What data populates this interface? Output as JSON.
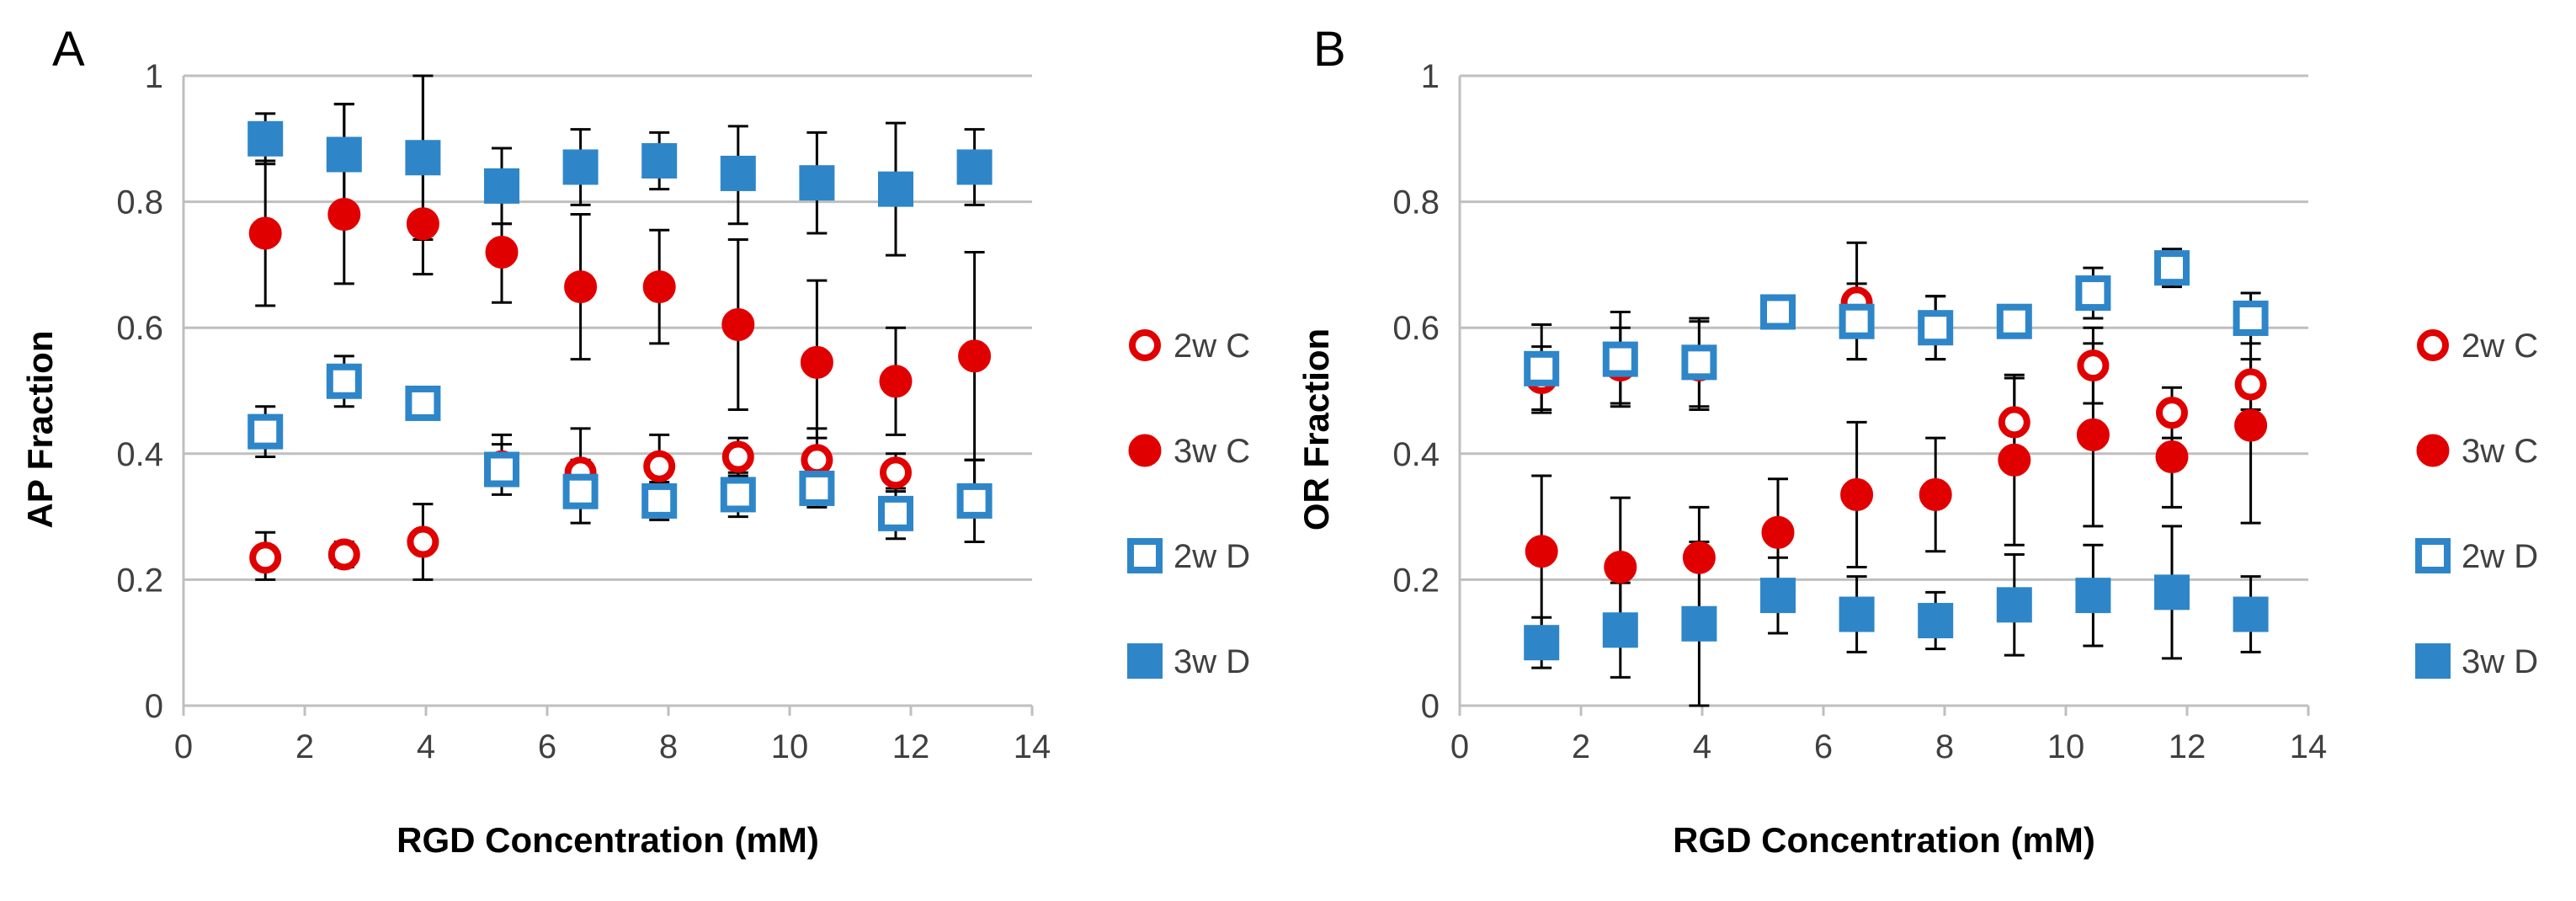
{
  "colors": {
    "red": "#e00000",
    "blue": "#2e86c8",
    "grid": "#bfbfbf",
    "err": "#000000"
  },
  "chart_data": [
    {
      "type": "scatter",
      "panel_label": "A",
      "xlabel": "RGD Concentration (mM)",
      "ylabel": "AP Fraction",
      "xlim": [
        0,
        14
      ],
      "ylim": [
        0,
        1
      ],
      "x_ticks": [
        "0",
        "2",
        "4",
        "6",
        "8",
        "10",
        "12",
        "14"
      ],
      "y_ticks": [
        "0",
        "0.2",
        "0.4",
        "0.6",
        "0.8",
        "1"
      ],
      "grid": "horizontal",
      "legend_position": "right",
      "x": [
        1.35,
        2.65,
        3.95,
        5.25,
        6.55,
        7.85,
        9.15,
        10.45,
        11.75,
        13.05
      ],
      "series": [
        {
          "name": "2w C",
          "marker": "open-circle",
          "color": "#e00000",
          "values": [
            0.235,
            0.24,
            0.26,
            0.38,
            0.37,
            0.38,
            0.395,
            0.39,
            0.37,
            0.325
          ],
          "err_low": [
            0.035,
            0.02,
            0.06,
            0.03,
            0.05,
            0.05,
            0.03,
            0.05,
            0.03,
            0.015
          ],
          "err_high": [
            0.04,
            0.02,
            0.06,
            0.05,
            0.07,
            0.05,
            0.03,
            0.05,
            0.03,
            0.065
          ]
        },
        {
          "name": "3w C",
          "marker": "filled-circle",
          "color": "#e00000",
          "values": [
            0.75,
            0.78,
            0.765,
            0.72,
            0.665,
            0.665,
            0.605,
            0.545,
            0.515,
            0.555
          ],
          "err_low": [
            0.115,
            0.11,
            0.08,
            0.08,
            0.115,
            0.09,
            0.135,
            0.12,
            0.085,
            0.165
          ],
          "err_high": [
            0.115,
            0.175,
            0.235,
            0.045,
            0.115,
            0.09,
            0.135,
            0.13,
            0.085,
            0.165
          ]
        },
        {
          "name": "2w D",
          "marker": "open-square",
          "color": "#2e86c8",
          "values": [
            0.435,
            0.515,
            0.48,
            0.375,
            0.34,
            0.325,
            0.335,
            0.345,
            0.305,
            0.325
          ],
          "err_low": [
            0.04,
            0.04,
            0.015,
            0.04,
            0.05,
            0.03,
            0.035,
            0.03,
            0.04,
            0.065
          ],
          "err_high": [
            0.04,
            0.04,
            0.015,
            0.04,
            0.05,
            0.03,
            0.035,
            0.03,
            0.04,
            0.065
          ]
        },
        {
          "name": "3w D",
          "marker": "filled-square",
          "color": "#2e86c8",
          "values": [
            0.9,
            0.875,
            0.87,
            0.825,
            0.855,
            0.865,
            0.845,
            0.83,
            0.82,
            0.855
          ],
          "err_low": [
            0.04,
            0.08,
            0.13,
            0.06,
            0.06,
            0.045,
            0.08,
            0.08,
            0.105,
            0.06
          ],
          "err_high": [
            0.04,
            0.08,
            0.13,
            0.06,
            0.06,
            0.045,
            0.075,
            0.08,
            0.105,
            0.06
          ]
        }
      ]
    },
    {
      "type": "scatter",
      "panel_label": "B",
      "xlabel": "RGD Concentration (mM)",
      "ylabel": "OR Fraction",
      "xlim": [
        0,
        14
      ],
      "ylim": [
        0,
        1
      ],
      "x_ticks": [
        "0",
        "2",
        "4",
        "6",
        "8",
        "10",
        "12",
        "14"
      ],
      "y_ticks": [
        "0",
        "0.2",
        "0.4",
        "0.6",
        "0.8",
        "1"
      ],
      "grid": "horizontal",
      "legend_position": "right",
      "x": [
        1.35,
        2.65,
        3.95,
        5.25,
        6.55,
        7.85,
        9.15,
        10.45,
        11.75,
        13.05
      ],
      "series": [
        {
          "name": "2w C",
          "marker": "open-circle",
          "color": "#e00000",
          "values": [
            0.52,
            0.54,
            0.54,
            0.625,
            0.64,
            0.6,
            0.45,
            0.54,
            0.465,
            0.51
          ],
          "err_low": [
            0.05,
            0.06,
            0.07,
            0.02,
            0.09,
            0.05,
            0.07,
            0.06,
            0.04,
            0.04
          ],
          "err_high": [
            0.05,
            0.06,
            0.07,
            0.02,
            0.095,
            0.05,
            0.07,
            0.06,
            0.04,
            0.04
          ]
        },
        {
          "name": "3w C",
          "marker": "filled-circle",
          "color": "#e00000",
          "values": [
            0.245,
            0.22,
            0.235,
            0.275,
            0.335,
            0.335,
            0.39,
            0.43,
            0.395,
            0.445
          ],
          "err_low": [
            0.12,
            0.11,
            0.08,
            0.085,
            0.115,
            0.09,
            0.135,
            0.145,
            0.08,
            0.155
          ],
          "err_high": [
            0.12,
            0.11,
            0.08,
            0.085,
            0.115,
            0.09,
            0.135,
            0.145,
            0.08,
            0.155
          ]
        },
        {
          "name": "2w D",
          "marker": "open-square",
          "color": "#2e86c8",
          "values": [
            0.535,
            0.55,
            0.545,
            0.625,
            0.61,
            0.6,
            0.61,
            0.655,
            0.695,
            0.615
          ],
          "err_low": [
            0.07,
            0.075,
            0.07,
            0.02,
            0.06,
            0.05,
            0.02,
            0.04,
            0.03,
            0.04
          ],
          "err_high": [
            0.07,
            0.075,
            0.07,
            0.02,
            0.06,
            0.05,
            0.02,
            0.04,
            0.03,
            0.04
          ]
        },
        {
          "name": "3w D",
          "marker": "filled-square",
          "color": "#2e86c8",
          "values": [
            0.1,
            0.12,
            0.13,
            0.175,
            0.145,
            0.135,
            0.16,
            0.175,
            0.18,
            0.145
          ],
          "err_low": [
            0.04,
            0.075,
            0.13,
            0.06,
            0.06,
            0.045,
            0.08,
            0.08,
            0.105,
            0.06
          ],
          "err_high": [
            0.04,
            0.075,
            0.13,
            0.06,
            0.06,
            0.045,
            0.08,
            0.08,
            0.105,
            0.06
          ]
        }
      ]
    }
  ]
}
